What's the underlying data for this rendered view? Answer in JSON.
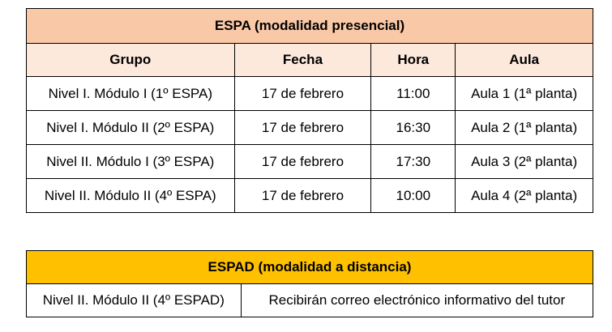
{
  "espa": {
    "title": "ESPA (modalidad presencial)",
    "headers": [
      "Grupo",
      "Fecha",
      "Hora",
      "Aula"
    ],
    "rows": [
      [
        "Nivel I. Módulo I (1º ESPA)",
        "17 de febrero",
        "11:00",
        "Aula 1 (1ª planta)"
      ],
      [
        "Nivel I. Módulo II (2º ESPA)",
        "17 de febrero",
        "16:30",
        "Aula 2 (1ª planta)"
      ],
      [
        "Nivel II. Módulo I (3º ESPA)",
        "17 de febrero",
        "17:30",
        "Aula 3 (2ª planta)"
      ],
      [
        "Nivel II. Módulo II (4º ESPA)",
        "17 de febrero",
        "10:00",
        "Aula 4 (2ª planta)"
      ]
    ]
  },
  "espad": {
    "title": "ESPAD (modalidad a distancia)",
    "row": [
      "Nivel II. Módulo II (4º ESPAD)",
      "Recibirán correo electrónico informativo del tutor"
    ]
  },
  "colors": {
    "espa_title_bg": "#f9c8a7",
    "espa_header_bg": "#fde8dc",
    "espad_title_bg": "#ffc000"
  }
}
